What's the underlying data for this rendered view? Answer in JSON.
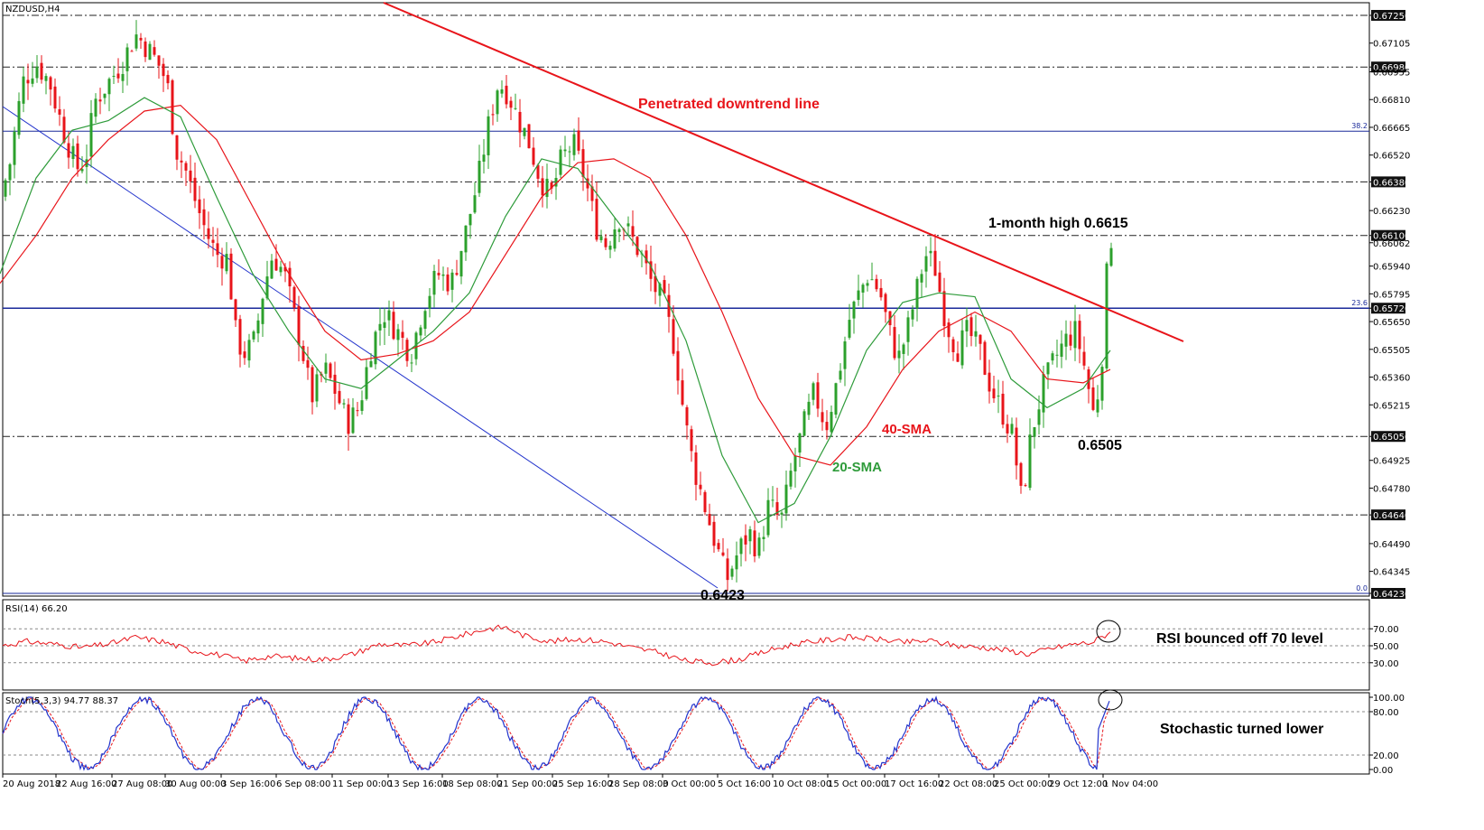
{
  "chart_data": [
    {
      "type": "candlestick",
      "symbol_label": "NZDUSD,H4",
      "ylim": [
        0.6423,
        0.6725
      ],
      "y_ticks": [
        "0.67250",
        "0.67105",
        "0.66980",
        "0.66955",
        "0.66810",
        "0.66665",
        "0.66520",
        "0.66380",
        "0.66230",
        "0.66100",
        "0.66062",
        "0.65940",
        "0.65795",
        "0.65720",
        "0.65650",
        "0.65505",
        "0.65360",
        "0.65215",
        "0.65050",
        "0.64925",
        "0.64780",
        "0.64640",
        "0.64490",
        "0.64345",
        "0.64230"
      ],
      "x_ticks": [
        "20 Aug 2018",
        "22 Aug 16:00",
        "27 Aug 08:00",
        "30 Aug 00:00",
        "3 Sep 16:00",
        "6 Sep 08:00",
        "11 Sep 00:00",
        "13 Sep 16:00",
        "18 Sep 08:00",
        "21 Sep 00:00",
        "25 Sep 16:00",
        "28 Sep 08:00",
        "3 Oct 00:00",
        "5 Oct 16:00",
        "10 Oct 08:00",
        "15 Oct 00:00",
        "17 Oct 16:00",
        "22 Oct 08:00",
        "25 Oct 00:00",
        "29 Oct 12:00",
        "1 Nov 04:00"
      ],
      "horizontal_levels": [
        0.6725,
        0.6698,
        0.6638,
        0.661,
        0.6505,
        0.6464
      ],
      "fib_levels": [
        {
          "label": "38.2",
          "value": 0.66645
        },
        {
          "label": "23.6",
          "value": 0.6572
        },
        {
          "label": "0.0",
          "value": 0.6423
        }
      ],
      "close_path": [
        [
          0,
          0.663
        ],
        [
          10,
          0.6645
        ],
        [
          25,
          0.669
        ],
        [
          40,
          0.67
        ],
        [
          55,
          0.669
        ],
        [
          70,
          0.6665
        ],
        [
          85,
          0.6645
        ],
        [
          95,
          0.665
        ],
        [
          105,
          0.668
        ],
        [
          120,
          0.669
        ],
        [
          135,
          0.67
        ],
        [
          150,
          0.6715
        ],
        [
          160,
          0.671
        ],
        [
          175,
          0.67
        ],
        [
          185,
          0.669
        ],
        [
          195,
          0.6655
        ],
        [
          205,
          0.6645
        ],
        [
          215,
          0.663
        ],
        [
          228,
          0.6612
        ],
        [
          240,
          0.66
        ],
        [
          252,
          0.6598
        ],
        [
          262,
          0.6555
        ],
        [
          272,
          0.6548
        ],
        [
          282,
          0.6555
        ],
        [
          292,
          0.6582
        ],
        [
          302,
          0.66
        ],
        [
          315,
          0.659
        ],
        [
          325,
          0.657
        ],
        [
          335,
          0.655
        ],
        [
          345,
          0.6525
        ],
        [
          360,
          0.654
        ],
        [
          372,
          0.6528
        ],
        [
          385,
          0.6512
        ],
        [
          398,
          0.652
        ],
        [
          410,
          0.655
        ],
        [
          425,
          0.657
        ],
        [
          440,
          0.656
        ],
        [
          455,
          0.6548
        ],
        [
          470,
          0.6575
        ],
        [
          485,
          0.659
        ],
        [
          500,
          0.6585
        ],
        [
          515,
          0.661
        ],
        [
          530,
          0.664
        ],
        [
          540,
          0.6665
        ],
        [
          552,
          0.669
        ],
        [
          562,
          0.6685
        ],
        [
          575,
          0.667
        ],
        [
          585,
          0.666
        ],
        [
          598,
          0.664
        ],
        [
          610,
          0.663
        ],
        [
          622,
          0.665
        ],
        [
          635,
          0.6658
        ],
        [
          648,
          0.664
        ],
        [
          660,
          0.6615
        ],
        [
          672,
          0.6605
        ],
        [
          685,
          0.662
        ],
        [
          698,
          0.661
        ],
        [
          710,
          0.66
        ],
        [
          722,
          0.6585
        ],
        [
          735,
          0.6575
        ],
        [
          748,
          0.655
        ],
        [
          758,
          0.6515
        ],
        [
          768,
          0.649
        ],
        [
          780,
          0.647
        ],
        [
          792,
          0.645
        ],
        [
          805,
          0.643
        ],
        [
          818,
          0.6445
        ],
        [
          830,
          0.6455
        ],
        [
          840,
          0.6445
        ],
        [
          852,
          0.647
        ],
        [
          865,
          0.646
        ],
        [
          878,
          0.649
        ],
        [
          890,
          0.651
        ],
        [
          902,
          0.6528
        ],
        [
          915,
          0.651
        ],
        [
          928,
          0.6535
        ],
        [
          940,
          0.6565
        ],
        [
          952,
          0.658
        ],
        [
          962,
          0.659
        ],
        [
          975,
          0.658
        ],
        [
          985,
          0.656
        ],
        [
          995,
          0.6545
        ],
        [
          1005,
          0.656
        ],
        [
          1015,
          0.658
        ],
        [
          1025,
          0.66
        ],
        [
          1035,
          0.6595
        ],
        [
          1048,
          0.6565
        ],
        [
          1060,
          0.655
        ],
        [
          1072,
          0.656
        ],
        [
          1085,
          0.655
        ],
        [
          1098,
          0.653
        ],
        [
          1110,
          0.6518
        ],
        [
          1122,
          0.6505
        ],
        [
          1132,
          0.647
        ],
        [
          1142,
          0.6505
        ],
        [
          1155,
          0.653
        ],
        [
          1168,
          0.6545
        ],
        [
          1180,
          0.6555
        ],
        [
          1192,
          0.656
        ],
        [
          1202,
          0.654
        ],
        [
          1212,
          0.6515
        ],
        [
          1220,
          0.654
        ],
        [
          1228,
          0.6605
        ],
        [
          1232,
          0.661
        ]
      ],
      "sma20_path": [
        [
          0,
          0.659
        ],
        [
          40,
          0.664
        ],
        [
          80,
          0.6665
        ],
        [
          120,
          0.667
        ],
        [
          160,
          0.6682
        ],
        [
          200,
          0.6672
        ],
        [
          240,
          0.663
        ],
        [
          280,
          0.659
        ],
        [
          320,
          0.656
        ],
        [
          360,
          0.6535
        ],
        [
          400,
          0.653
        ],
        [
          440,
          0.6545
        ],
        [
          480,
          0.656
        ],
        [
          520,
          0.658
        ],
        [
          560,
          0.662
        ],
        [
          600,
          0.665
        ],
        [
          640,
          0.6645
        ],
        [
          680,
          0.662
        ],
        [
          720,
          0.6595
        ],
        [
          760,
          0.6555
        ],
        [
          800,
          0.6495
        ],
        [
          840,
          0.646
        ],
        [
          880,
          0.647
        ],
        [
          920,
          0.6505
        ],
        [
          960,
          0.655
        ],
        [
          1000,
          0.6575
        ],
        [
          1040,
          0.658
        ],
        [
          1080,
          0.6578
        ],
        [
          1120,
          0.6535
        ],
        [
          1160,
          0.652
        ],
        [
          1200,
          0.653
        ],
        [
          1230,
          0.655
        ]
      ],
      "sma40_path": [
        [
          0,
          0.6585
        ],
        [
          40,
          0.661
        ],
        [
          80,
          0.664
        ],
        [
          120,
          0.666
        ],
        [
          160,
          0.6675
        ],
        [
          200,
          0.6678
        ],
        [
          240,
          0.666
        ],
        [
          280,
          0.6625
        ],
        [
          320,
          0.659
        ],
        [
          360,
          0.656
        ],
        [
          400,
          0.6545
        ],
        [
          440,
          0.6548
        ],
        [
          480,
          0.6555
        ],
        [
          520,
          0.657
        ],
        [
          560,
          0.66
        ],
        [
          600,
          0.663
        ],
        [
          640,
          0.6648
        ],
        [
          680,
          0.665
        ],
        [
          720,
          0.664
        ],
        [
          760,
          0.661
        ],
        [
          800,
          0.657
        ],
        [
          840,
          0.6525
        ],
        [
          880,
          0.6495
        ],
        [
          920,
          0.649
        ],
        [
          960,
          0.651
        ],
        [
          1000,
          0.654
        ],
        [
          1040,
          0.656
        ],
        [
          1080,
          0.657
        ],
        [
          1120,
          0.656
        ],
        [
          1160,
          0.6535
        ],
        [
          1200,
          0.6533
        ],
        [
          1230,
          0.654
        ]
      ],
      "annotations": [
        {
          "text": "Penetrated downtrend line"
        },
        {
          "text": "1-month high 0.6615"
        },
        {
          "text": "40-SMA"
        },
        {
          "text": "20-SMA"
        },
        {
          "text": "0.6505"
        },
        {
          "text": "0.6423"
        }
      ],
      "colors": {
        "up": "#2ca02c",
        "down": "#e8141a",
        "sma20": "#2e9b3a",
        "sma40": "#e8141a",
        "trend": "#e8141a",
        "channel": "#2233cc",
        "fib": "#1a2a9a"
      }
    },
    {
      "type": "line",
      "indicator_label": "RSI(14) 66.20",
      "ylim": [
        0,
        100
      ],
      "y_ticks": [
        "70.00",
        "50.00",
        "30.00"
      ],
      "levels": [
        70,
        50,
        30
      ],
      "path": [
        [
          0,
          50
        ],
        [
          30,
          55
        ],
        [
          60,
          52
        ],
        [
          90,
          48
        ],
        [
          120,
          52
        ],
        [
          150,
          60
        ],
        [
          180,
          55
        ],
        [
          210,
          45
        ],
        [
          240,
          40
        ],
        [
          270,
          32
        ],
        [
          300,
          38
        ],
        [
          330,
          35
        ],
        [
          360,
          34
        ],
        [
          390,
          40
        ],
        [
          420,
          52
        ],
        [
          450,
          50
        ],
        [
          480,
          54
        ],
        [
          510,
          62
        ],
        [
          540,
          70
        ],
        [
          560,
          72
        ],
        [
          580,
          62
        ],
        [
          610,
          55
        ],
        [
          640,
          58
        ],
        [
          670,
          55
        ],
        [
          700,
          48
        ],
        [
          730,
          42
        ],
        [
          760,
          32
        ],
        [
          790,
          30
        ],
        [
          820,
          34
        ],
        [
          850,
          44
        ],
        [
          880,
          52
        ],
        [
          910,
          56
        ],
        [
          940,
          60
        ],
        [
          970,
          58
        ],
        [
          1000,
          54
        ],
        [
          1030,
          56
        ],
        [
          1060,
          50
        ],
        [
          1090,
          48
        ],
        [
          1120,
          44
        ],
        [
          1140,
          40
        ],
        [
          1160,
          46
        ],
        [
          1190,
          52
        ],
        [
          1210,
          54
        ],
        [
          1220,
          60
        ],
        [
          1230,
          66
        ]
      ],
      "annotation": "RSI bounced off 70 level",
      "color": "#e8141a"
    },
    {
      "type": "line",
      "indicator_label": "Stoch(5,3,3) 94.77 88.37",
      "ylim": [
        0,
        100
      ],
      "y_ticks": [
        "100.00",
        "80.00",
        "20.00",
        "0.00"
      ],
      "levels": [
        80,
        20
      ],
      "main_color": "#2233cc",
      "signal_color": "#e8141a",
      "annotation": "Stochastic turned lower"
    }
  ]
}
